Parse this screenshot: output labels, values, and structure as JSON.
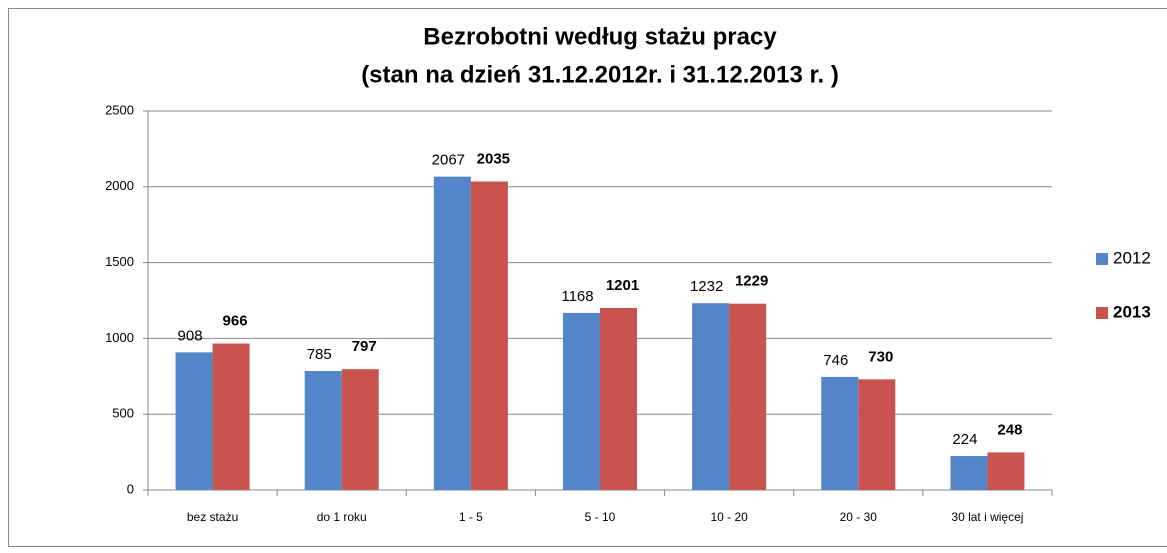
{
  "chart_data": {
    "type": "bar",
    "title": [
      "Bezrobotni według stażu pracy",
      "(stan na dzień 31.12.2012r. i 31.12.2013 r. )"
    ],
    "categories": [
      "bez stażu",
      "do 1 roku",
      "1 - 5",
      "5 - 10",
      "10 - 20",
      "20 - 30",
      "30 lat i więcej"
    ],
    "series": [
      {
        "name": "2012",
        "color": "#5585c9",
        "label_bold": false,
        "values": [
          908,
          785,
          2067,
          1168,
          1232,
          746,
          224
        ]
      },
      {
        "name": "2013",
        "color": "#c9534f",
        "label_bold": true,
        "values": [
          966,
          797,
          2035,
          1201,
          1229,
          730,
          248
        ]
      }
    ],
    "ylim": [
      0,
      2500
    ],
    "yticks": [
      0,
      500,
      1000,
      1500,
      2000,
      2500
    ],
    "grid": true,
    "legend": "right"
  }
}
